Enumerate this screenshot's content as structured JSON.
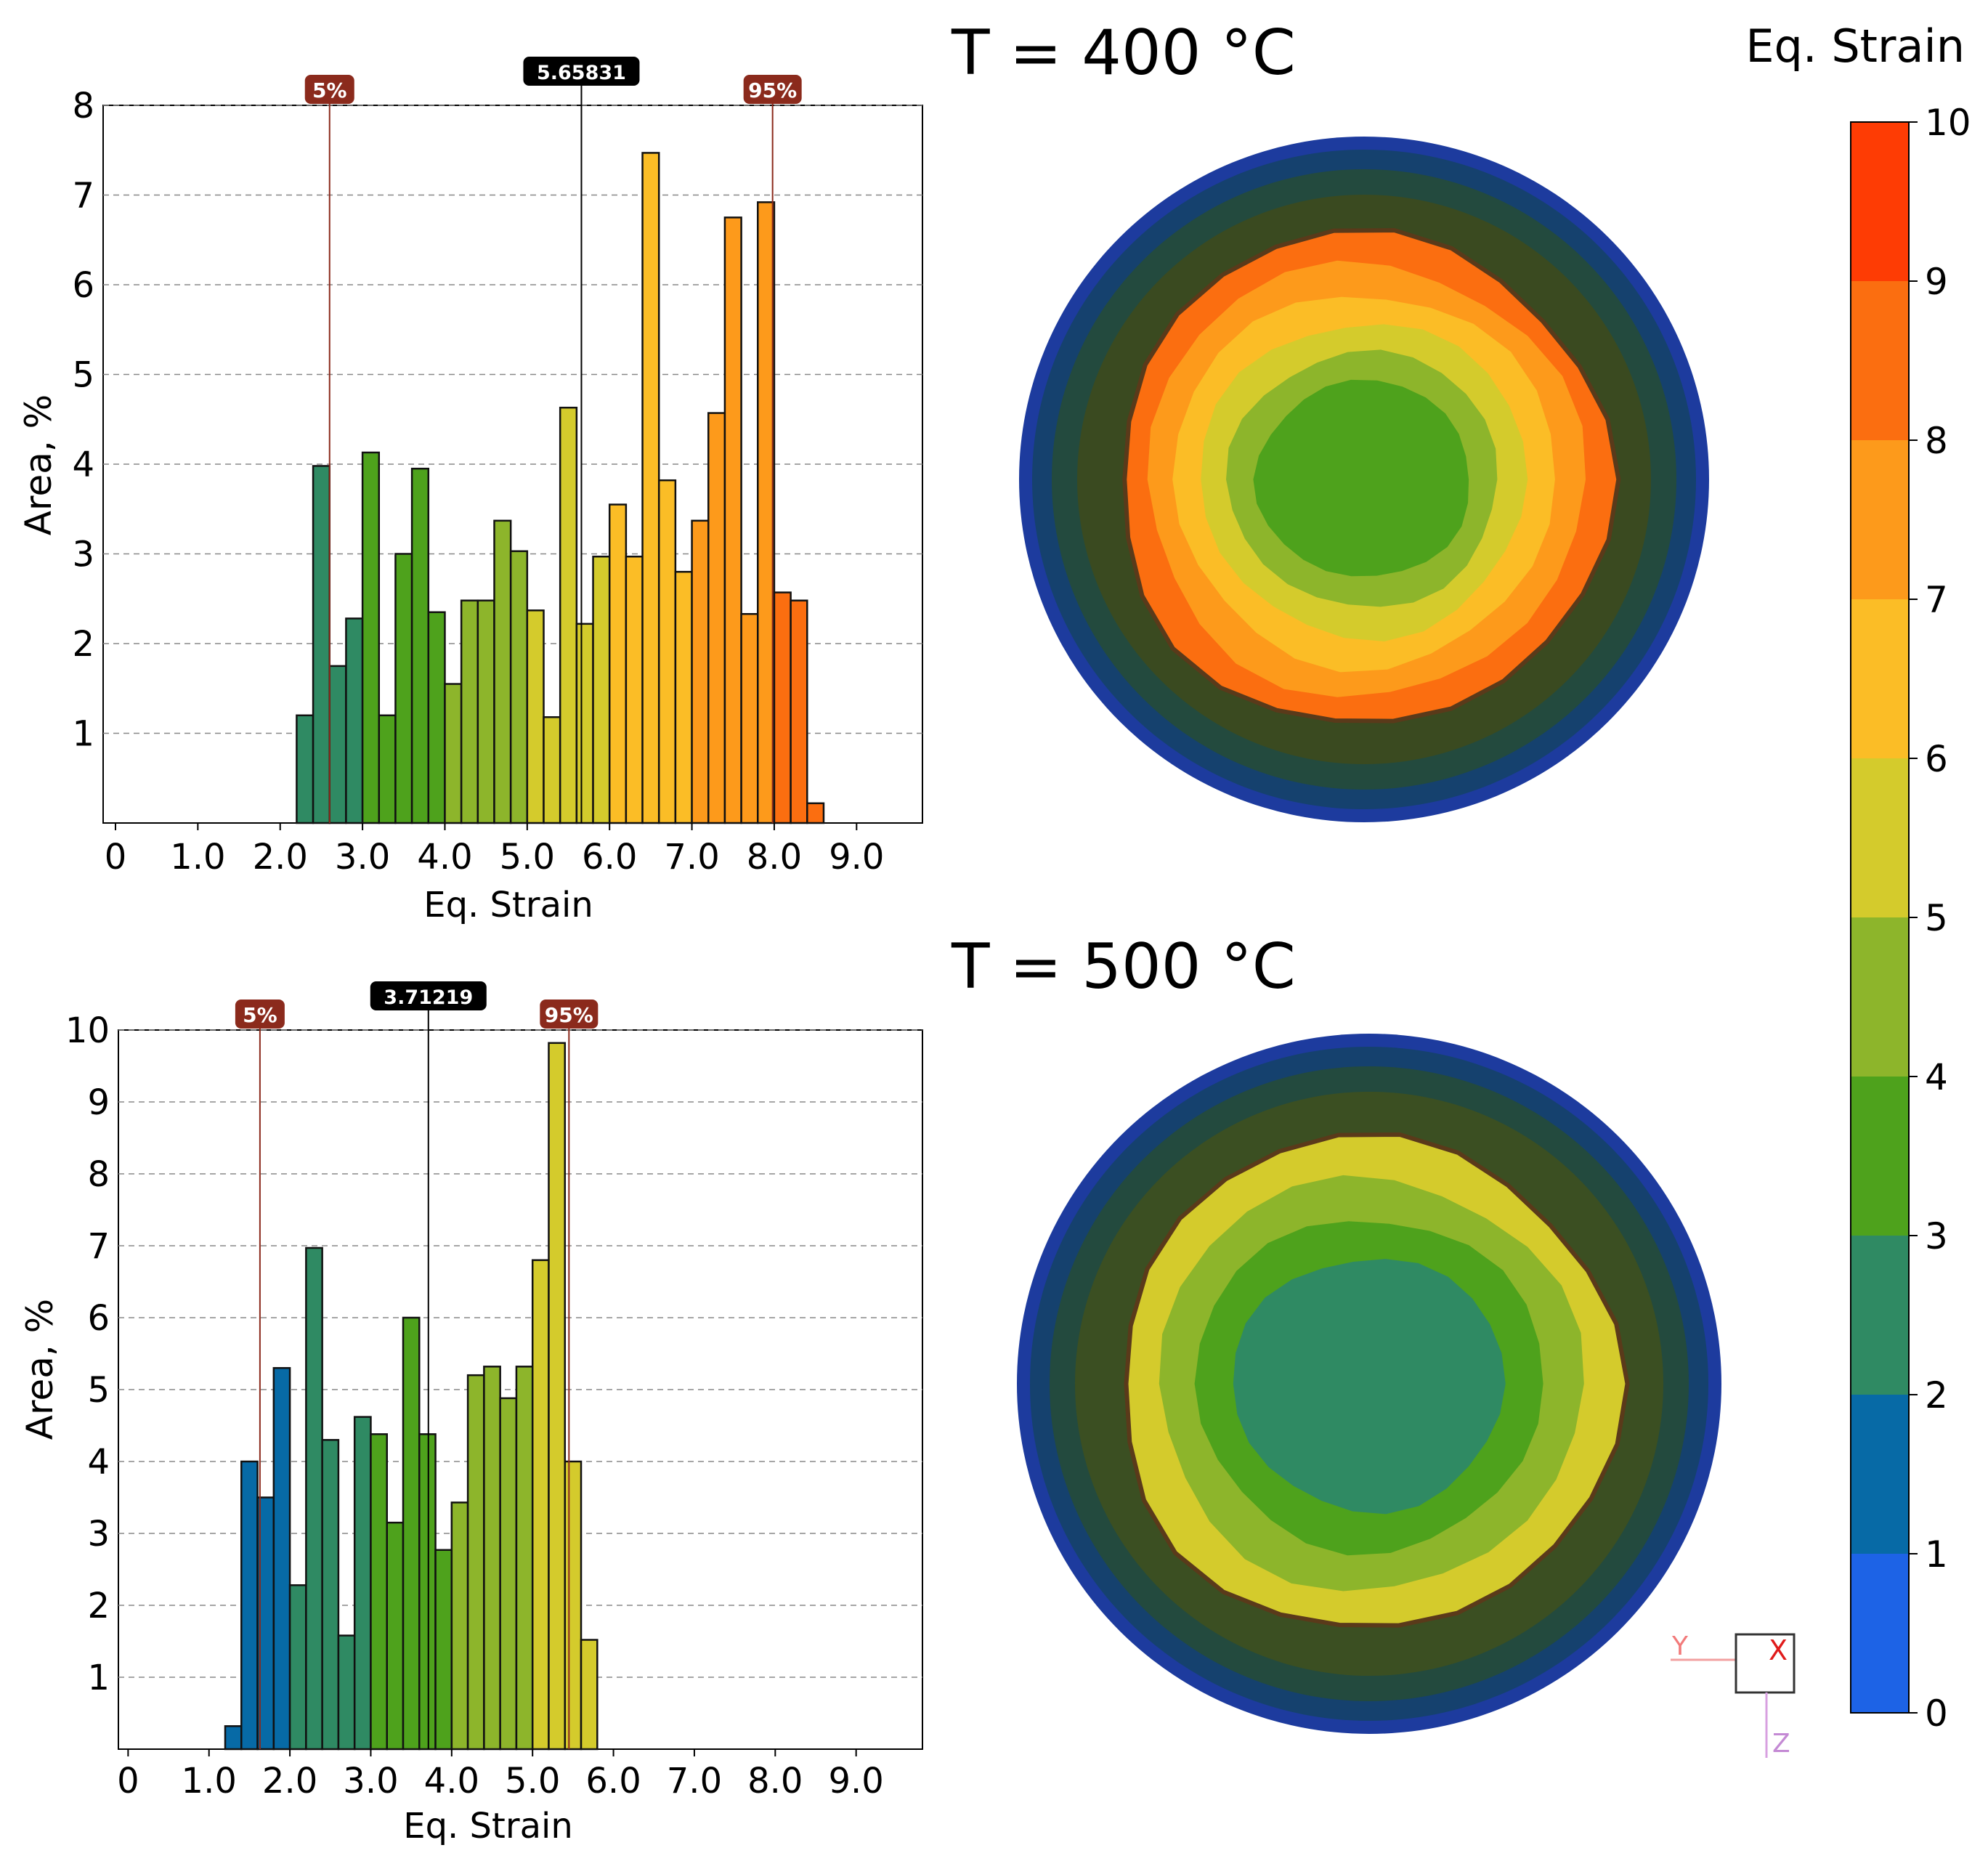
{
  "colors": {
    "bins": [
      "#1d63e6",
      "#076aa6",
      "#2f8a63",
      "#4ea21c",
      "#8db52b",
      "#d4cb2c",
      "#fbbd26",
      "#fd9a1b",
      "#fb6e10",
      "#fe3c04"
    ],
    "marker_percentile": "#8b2a1c",
    "marker_mean": "#000000"
  },
  "legend": {
    "title": "Eq. Strain",
    "ticks": [
      "0",
      "1",
      "2",
      "3",
      "4",
      "5",
      "6",
      "7",
      "8",
      "9",
      "10"
    ]
  },
  "maps": [
    {
      "title": "T = 400 °C",
      "levels": [
        3,
        4,
        5,
        6,
        7,
        8
      ]
    },
    {
      "title": "T = 500 °C",
      "levels": [
        2,
        3,
        4,
        5
      ]
    }
  ],
  "axis_triad": {
    "y": "Y",
    "x": "X",
    "z": "Z"
  },
  "chart_data": [
    {
      "type": "bar",
      "title": "",
      "xlabel": "Eq. Strain",
      "ylabel": "Area, %",
      "xlim": [
        -0.15,
        9.8
      ],
      "ylim": [
        0,
        8
      ],
      "xticks": [
        "0",
        "1.0",
        "2.0",
        "3.0",
        "4.0",
        "5.0",
        "6.0",
        "7.0",
        "8.0",
        "9.0"
      ],
      "yticks": [
        "1",
        "2",
        "3",
        "4",
        "5",
        "6",
        "7",
        "8"
      ],
      "bin_width": 0.2,
      "bins": [
        {
          "x": 2.3,
          "v": 1.2
        },
        {
          "x": 2.5,
          "v": 3.98
        },
        {
          "x": 2.7,
          "v": 1.75
        },
        {
          "x": 2.9,
          "v": 2.28
        },
        {
          "x": 3.1,
          "v": 4.13
        },
        {
          "x": 3.3,
          "v": 1.2
        },
        {
          "x": 3.5,
          "v": 3.0
        },
        {
          "x": 3.7,
          "v": 3.95
        },
        {
          "x": 3.9,
          "v": 2.35
        },
        {
          "x": 4.1,
          "v": 1.55
        },
        {
          "x": 4.3,
          "v": 2.48
        },
        {
          "x": 4.5,
          "v": 2.48
        },
        {
          "x": 4.7,
          "v": 3.37
        },
        {
          "x": 4.9,
          "v": 3.03
        },
        {
          "x": 5.1,
          "v": 2.37
        },
        {
          "x": 5.3,
          "v": 1.18
        },
        {
          "x": 5.5,
          "v": 4.63
        },
        {
          "x": 5.7,
          "v": 2.22
        },
        {
          "x": 5.9,
          "v": 2.97
        },
        {
          "x": 6.1,
          "v": 3.55
        },
        {
          "x": 6.3,
          "v": 2.97
        },
        {
          "x": 6.5,
          "v": 7.47
        },
        {
          "x": 6.7,
          "v": 3.82
        },
        {
          "x": 6.9,
          "v": 2.8
        },
        {
          "x": 7.1,
          "v": 3.37
        },
        {
          "x": 7.3,
          "v": 4.57
        },
        {
          "x": 7.5,
          "v": 6.75
        },
        {
          "x": 7.7,
          "v": 2.33
        },
        {
          "x": 7.9,
          "v": 6.92
        },
        {
          "x": 8.1,
          "v": 2.57
        },
        {
          "x": 8.3,
          "v": 2.48
        },
        {
          "x": 8.5,
          "v": 0.22
        }
      ],
      "markers": {
        "p5": 2.6,
        "mean": 5.65831,
        "p95": 7.98
      },
      "labels": {
        "p5": "5%",
        "mean": "5.65831",
        "p95": "95%"
      }
    },
    {
      "type": "bar",
      "title": "",
      "xlabel": "Eq. Strain",
      "ylabel": "Area, %",
      "xlim": [
        -0.12,
        9.82
      ],
      "ylim": [
        0,
        10
      ],
      "xticks": [
        "0",
        "1.0",
        "2.0",
        "3.0",
        "4.0",
        "5.0",
        "6.0",
        "7.0",
        "8.0",
        "9.0"
      ],
      "yticks": [
        "1",
        "2",
        "3",
        "4",
        "5",
        "6",
        "7",
        "8",
        "9",
        "10"
      ],
      "bin_width": 0.2,
      "bins": [
        {
          "x": 1.3,
          "v": 0.32
        },
        {
          "x": 1.5,
          "v": 4.0
        },
        {
          "x": 1.7,
          "v": 3.5
        },
        {
          "x": 1.9,
          "v": 5.3
        },
        {
          "x": 2.1,
          "v": 2.28
        },
        {
          "x": 2.3,
          "v": 6.97
        },
        {
          "x": 2.5,
          "v": 4.3
        },
        {
          "x": 2.7,
          "v": 1.58
        },
        {
          "x": 2.9,
          "v": 4.62
        },
        {
          "x": 3.1,
          "v": 4.38
        },
        {
          "x": 3.3,
          "v": 3.15
        },
        {
          "x": 3.5,
          "v": 6.0
        },
        {
          "x": 3.7,
          "v": 4.38
        },
        {
          "x": 3.9,
          "v": 2.77
        },
        {
          "x": 4.1,
          "v": 3.43
        },
        {
          "x": 4.3,
          "v": 5.2
        },
        {
          "x": 4.5,
          "v": 5.32
        },
        {
          "x": 4.7,
          "v": 4.88
        },
        {
          "x": 4.9,
          "v": 5.32
        },
        {
          "x": 5.1,
          "v": 6.8
        },
        {
          "x": 5.3,
          "v": 9.82
        },
        {
          "x": 5.5,
          "v": 4.0
        },
        {
          "x": 5.7,
          "v": 1.52
        }
      ],
      "markers": {
        "p5": 1.63,
        "mean": 3.71219,
        "p95": 5.45
      },
      "labels": {
        "p5": "5%",
        "mean": "3.71219",
        "p95": "95%"
      }
    }
  ]
}
